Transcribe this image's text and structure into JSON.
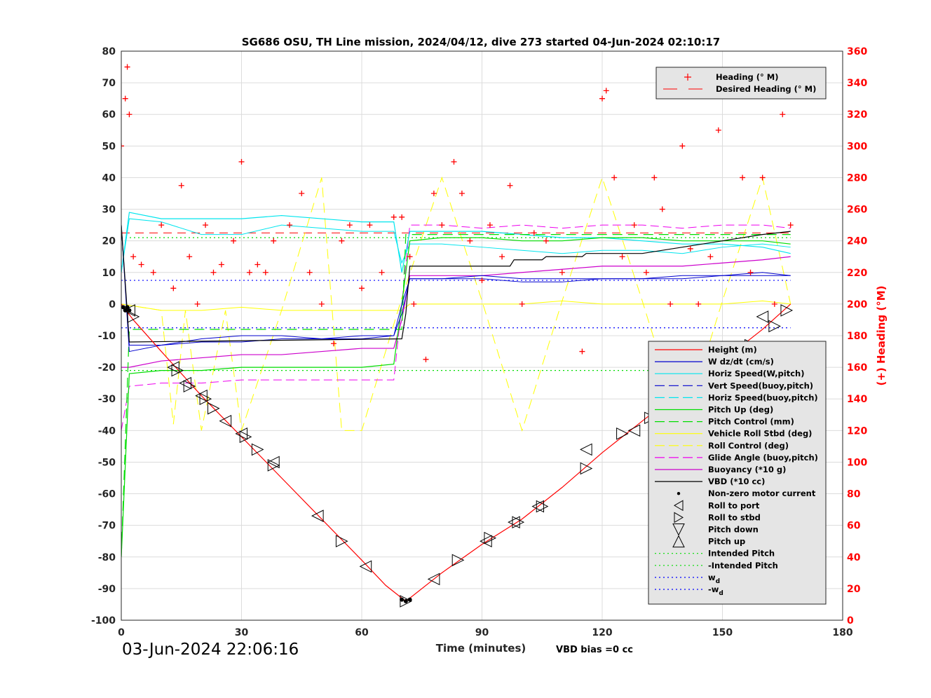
{
  "chart_data": {
    "type": "line",
    "title": "SG686 OSU, TH Line mission, 2024/04/12, dive 273 started 04-Jun-2024 02:10:17",
    "xlabel": "Time (minutes)",
    "ylabel_right": "(+) Heading (°M)",
    "footer_date": "03-Jun-2024 22:06:16",
    "footer_note": "VBD bias =0 cc",
    "xlim": [
      0,
      180
    ],
    "ylim": [
      -100,
      80
    ],
    "ylim_right": [
      0,
      360
    ],
    "x_ticks": [
      "0",
      "30",
      "60",
      "90",
      "120",
      "150",
      "180"
    ],
    "y_ticks": [
      "80",
      "70",
      "60",
      "50",
      "40",
      "30",
      "20",
      "10",
      "0",
      "-10",
      "-20",
      "-30",
      "-40",
      "-50",
      "-60",
      "-70",
      "-80",
      "-90",
      "-100"
    ],
    "y_ticks_right": [
      "360",
      "340",
      "320",
      "300",
      "280",
      "260",
      "240",
      "220",
      "200",
      "180",
      "160",
      "140",
      "120",
      "100",
      "80",
      "60",
      "40",
      "20",
      "0"
    ],
    "grid": true,
    "legend_top": [
      "Heading (° M)",
      "Desired Heading (° M)"
    ],
    "legend_main": [
      "Height (m)",
      "W dz/dt (cm/s)",
      "Horiz Speed(W,pitch)",
      "Vert Speed(buoy,pitch)",
      "Horiz Speed(buoy,pitch)",
      "Pitch Up (deg)",
      "Pitch Control (mm)",
      "Vehicle Roll Stbd (deg)",
      "Roll Control (deg)",
      "Glide Angle (buoy,pitch)",
      "Buoyancy (*10 g)",
      "VBD (*10 cc)",
      "Non-zero motor current",
      "Roll to port",
      "Roll to stbd",
      "Pitch down",
      "Pitch up",
      "Intended Pitch",
      "-Intended Pitch",
      "w",
      "-w"
    ],
    "legend_subscript": "d",
    "colors": {
      "depth": "#ff0000",
      "heading": "#ff0000",
      "w": "#0000cd",
      "horiz": "#00e5ee",
      "pitch": "#00dd00",
      "roll": "#ffff00",
      "glide": "#ee00ee",
      "buoy": "#cc00cc",
      "vbd": "#000000",
      "intended": "#00dd00",
      "wd": "#0000ff",
      "legend_bg": "#e5e5e5"
    },
    "series": [
      {
        "name": "Height (m)",
        "x": [
          0,
          3,
          10,
          20,
          30,
          40,
          50,
          60,
          66,
          71,
          80,
          90,
          100,
          110,
          120,
          130,
          140,
          150,
          160,
          167
        ],
        "y": [
          0,
          -5,
          -15,
          -29,
          -42,
          -55,
          -68,
          -81,
          -89,
          -94,
          -85,
          -76,
          -68,
          -58,
          -47,
          -37,
          -27,
          -18,
          -8,
          0
        ]
      },
      {
        "name": "Heading (° M)",
        "x": [
          0,
          1,
          1.5,
          2,
          3,
          5,
          8,
          10,
          13,
          15,
          17,
          19,
          21,
          23,
          25,
          28,
          30,
          32,
          34,
          36,
          38,
          42,
          45,
          47,
          50,
          53,
          55,
          57,
          60,
          62,
          65,
          68,
          70,
          72,
          73,
          76,
          78,
          80,
          83,
          85,
          87,
          90,
          92,
          95,
          97,
          100,
          103,
          106,
          110,
          115,
          120,
          121,
          123,
          125,
          128,
          131,
          133,
          135,
          137,
          140,
          142,
          144,
          147,
          149,
          152,
          155,
          157,
          160,
          163,
          165,
          167
        ],
        "y": [
          300,
          330,
          350,
          320,
          230,
          225,
          220,
          250,
          210,
          275,
          230,
          200,
          250,
          220,
          225,
          240,
          290,
          220,
          225,
          220,
          240,
          250,
          270,
          220,
          200,
          175,
          240,
          250,
          210,
          250,
          220,
          255,
          255,
          230,
          200,
          165,
          270,
          250,
          290,
          270,
          240,
          215,
          250,
          230,
          275,
          200,
          245,
          240,
          220,
          170,
          330,
          335,
          280,
          230,
          250,
          220,
          280,
          260,
          200,
          300,
          235,
          200,
          230,
          310,
          160,
          280,
          220,
          280,
          200,
          320,
          250
        ]
      },
      {
        "name": "Desired Heading (° M)",
        "x": [
          0,
          167
        ],
        "y": [
          245,
          245
        ]
      },
      {
        "name": "W dz/dt (cm/s)",
        "x": [
          0,
          2,
          10,
          20,
          30,
          40,
          50,
          60,
          68,
          70,
          72,
          80,
          90,
          100,
          110,
          120,
          130,
          140,
          150,
          160,
          167
        ],
        "y": [
          25,
          -13,
          -13,
          -11,
          -10,
          -10,
          -11,
          -11,
          -10,
          -3,
          8,
          8,
          8,
          7,
          7,
          8,
          8,
          9,
          9,
          10,
          9
        ]
      },
      {
        "name": "Horiz Speed(W,pitch)",
        "x": [
          0,
          2,
          10,
          20,
          30,
          40,
          50,
          60,
          68,
          70,
          72,
          80,
          90,
          100,
          110,
          120,
          130,
          140,
          150,
          160,
          167
        ],
        "y": [
          10,
          27,
          26,
          22,
          22,
          25,
          24,
          23,
          23,
          13,
          19,
          19,
          18,
          17,
          16,
          17,
          17,
          16,
          18,
          19,
          18
        ]
      },
      {
        "name": "Vert Speed(buoy,pitch)",
        "x": [
          0,
          2,
          10,
          20,
          30,
          40,
          50,
          60,
          68,
          70,
          72,
          80,
          90,
          100,
          110,
          120,
          130,
          140,
          150,
          160,
          167
        ],
        "y": [
          25,
          -15,
          -13,
          -12,
          -12,
          -11,
          -11,
          -10,
          -10,
          0,
          8,
          8,
          9,
          8,
          8,
          8,
          8,
          8,
          9,
          9,
          9
        ]
      },
      {
        "name": "Horiz Speed(buoy,pitch)",
        "x": [
          0,
          2,
          10,
          20,
          30,
          40,
          50,
          60,
          68,
          70,
          72,
          80,
          90,
          100,
          110,
          120,
          130,
          140,
          150,
          160,
          167
        ],
        "y": [
          10,
          29,
          27,
          27,
          27,
          28,
          27,
          26,
          26,
          10,
          23,
          23,
          23,
          22,
          21,
          21,
          20,
          19,
          19,
          18,
          16
        ]
      },
      {
        "name": "Pitch Up (deg)",
        "x": [
          0,
          2,
          10,
          20,
          30,
          40,
          50,
          60,
          68,
          70,
          72,
          80,
          90,
          100,
          110,
          120,
          130,
          140,
          150,
          160,
          167
        ],
        "y": [
          -80,
          -22,
          -21,
          -21,
          -20,
          -20,
          -20,
          -20,
          -19,
          0,
          20,
          21,
          21,
          20,
          20,
          21,
          21,
          20,
          20,
          20,
          19
        ]
      },
      {
        "name": "Pitch Control (mm)",
        "x": [
          0,
          2,
          70,
          71,
          167
        ],
        "y": [
          -80,
          -8,
          -8,
          22,
          22
        ]
      },
      {
        "name": "Vehicle Roll Stbd (deg)",
        "x": [
          0,
          10,
          20,
          30,
          40,
          50,
          60,
          70,
          72,
          80,
          90,
          100,
          110,
          120,
          130,
          140,
          150,
          160,
          167
        ],
        "y": [
          0,
          -2,
          -2,
          -1,
          -2,
          -2,
          -2,
          -2,
          0,
          0,
          0,
          0,
          1,
          0,
          0,
          0,
          0,
          1,
          0
        ]
      },
      {
        "name": "Roll Control (deg)",
        "x": [
          0,
          10,
          13,
          16,
          20,
          26,
          30,
          40,
          50,
          55,
          60,
          70,
          80,
          90,
          100,
          110,
          120,
          130,
          140,
          150,
          160,
          167
        ],
        "y": [
          0,
          -2,
          -38,
          -2,
          -40,
          -2,
          -40,
          -2,
          40,
          -40,
          -40,
          2,
          40,
          1,
          -40,
          1,
          40,
          1,
          -40,
          1,
          40,
          0
        ]
      },
      {
        "name": "Glide Angle (buoy,pitch)",
        "x": [
          0,
          2,
          10,
          20,
          30,
          40,
          50,
          60,
          68,
          70,
          72,
          80,
          90,
          100,
          110,
          120,
          130,
          140,
          150,
          160,
          167
        ],
        "y": [
          -40,
          -26,
          -25,
          -25,
          -24,
          -24,
          -24,
          -24,
          -24,
          0,
          25,
          25,
          24,
          25,
          24,
          25,
          25,
          24,
          25,
          25,
          24
        ]
      },
      {
        "name": "Buoyancy (*10 g)",
        "x": [
          0,
          2,
          10,
          20,
          30,
          40,
          50,
          60,
          68,
          70,
          72,
          80,
          90,
          100,
          110,
          120,
          130,
          140,
          150,
          160,
          167
        ],
        "y": [
          -20,
          -20,
          -18,
          -17,
          -16,
          -16,
          -15,
          -14,
          -14,
          -5,
          9,
          9,
          9,
          10,
          11,
          12,
          12,
          12,
          13,
          14,
          15
        ]
      },
      {
        "name": "VBD (*10 cc)",
        "x": [
          0,
          2,
          70,
          71,
          72,
          80,
          90,
          97,
          98,
          105,
          106,
          115,
          116,
          130,
          140,
          150,
          160,
          167
        ],
        "y": [
          25,
          -12,
          -11,
          -3,
          12,
          12,
          12,
          12,
          14,
          14,
          15,
          15,
          16,
          16,
          18,
          20,
          22,
          23
        ]
      },
      {
        "name": "Intended Pitch",
        "x": [
          0,
          167
        ],
        "y": [
          21,
          21
        ]
      },
      {
        "name": "-Intended Pitch",
        "x": [
          0,
          167
        ],
        "y": [
          -21,
          -21
        ]
      },
      {
        "name": "w",
        "x": [
          0,
          167
        ],
        "y": [
          7.5,
          7.5
        ]
      },
      {
        "name": "-w",
        "x": [
          0,
          167
        ],
        "y": [
          -7.5,
          -7.5
        ]
      },
      {
        "name": "Roll to port",
        "x": [
          2,
          13,
          16,
          20,
          26,
          30,
          38,
          49,
          61,
          78,
          91,
          98,
          104,
          116,
          128,
          140,
          152,
          160
        ],
        "y": [
          -2,
          -20,
          -25,
          -29,
          -37,
          -41,
          -50,
          -67,
          -83,
          -87,
          -75,
          -69,
          -64,
          -46,
          -40,
          -29,
          -14,
          -4
        ]
      },
      {
        "name": "Roll to stbd",
        "x": [
          3,
          14,
          17,
          21,
          23,
          31,
          34,
          38,
          55,
          71,
          84,
          92,
          99,
          105,
          116,
          125,
          132,
          138,
          144,
          150,
          157,
          163,
          166
        ],
        "y": [
          -4,
          -21,
          -26,
          -30,
          -33,
          -42,
          -46,
          -51,
          -75,
          -94,
          -81,
          -74,
          -69,
          -64,
          -52,
          -41,
          -36,
          -30,
          -23,
          -20,
          -13,
          -7,
          -2
        ]
      },
      {
        "name": "Non-zero motor current",
        "x": [
          0.5,
          1,
          1.5,
          2,
          70,
          71,
          72,
          149,
          156
        ],
        "y": [
          -1,
          -2,
          -1,
          -2,
          -93.5,
          -94,
          -93.5,
          -19,
          -13
        ]
      }
    ]
  }
}
